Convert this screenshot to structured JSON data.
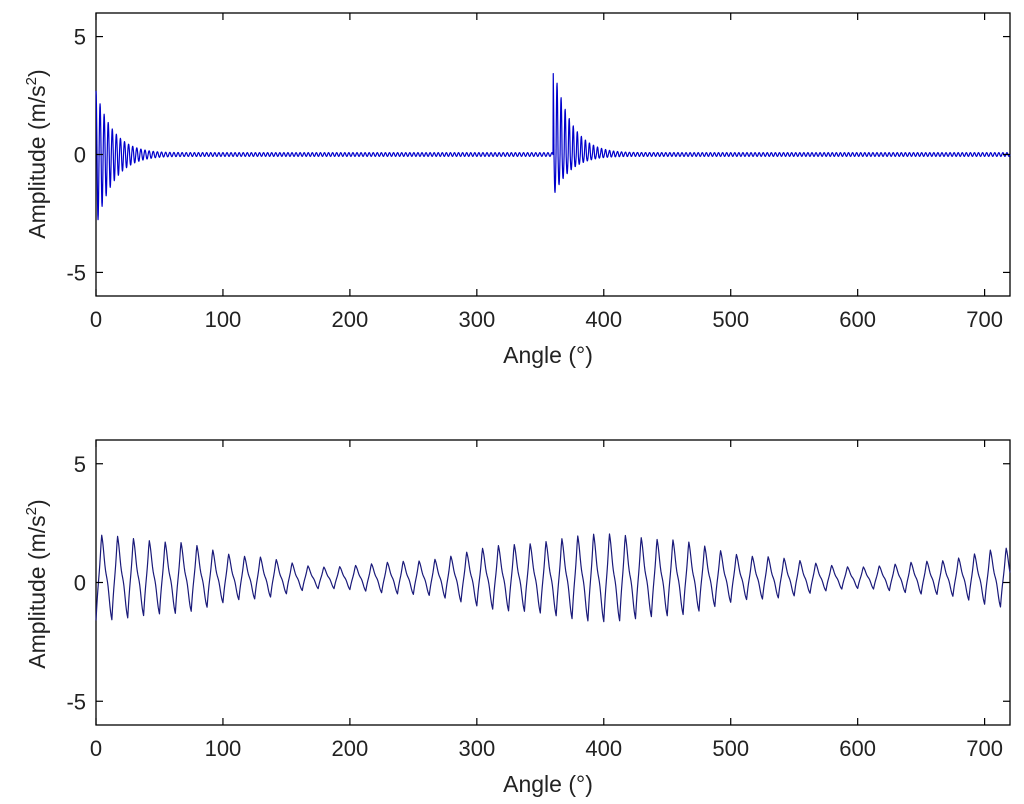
{
  "chart_data": [
    {
      "type": "line",
      "title": "",
      "xlabel": "Angle (°)",
      "ylabel_base": "Amplitude (m/s",
      "ylabel_sup": "2",
      "ylabel_end": ")",
      "xlim": [
        0,
        720
      ],
      "ylim": [
        -6,
        6
      ],
      "xticks": [
        0,
        100,
        200,
        300,
        400,
        500,
        600,
        700
      ],
      "xtick_labels": [
        "0",
        "100",
        "200",
        "300",
        "400",
        "500",
        "600",
        "700"
      ],
      "yticks": [
        5,
        0,
        -5
      ],
      "ytick_labels": [
        "5",
        "0",
        "-5"
      ],
      "grid": false,
      "color": "#0000cc",
      "signal": {
        "description_type": "decaying impacts",
        "impacts": [
          {
            "x": 0,
            "peak_pos": 2.7,
            "peak_neg": -3.1,
            "decay_deg": 14,
            "period_deg": 3.2
          },
          {
            "x": 360,
            "peak_pos": 3.8,
            "peak_neg": -1.8,
            "decay_deg": 14,
            "period_deg": 3.2
          }
        ],
        "baseline_ripple_amplitude": 0.08,
        "baseline_ripple_period_deg": 3.2
      }
    },
    {
      "type": "line",
      "title": "",
      "xlabel": "Angle (°)",
      "ylabel_base": "Amplitude (m/s",
      "ylabel_sup": "2",
      "ylabel_end": ")",
      "xlim": [
        0,
        720
      ],
      "ylim": [
        -6,
        6
      ],
      "xticks": [
        0,
        100,
        200,
        300,
        400,
        500,
        600,
        700
      ],
      "xtick_labels": [
        "0",
        "100",
        "200",
        "300",
        "400",
        "500",
        "600",
        "700"
      ],
      "yticks": [
        5,
        0,
        -5
      ],
      "ytick_labels": [
        "5",
        "0",
        "-5"
      ],
      "grid": false,
      "color": "#1a1a7a",
      "signal": {
        "description_type": "modulated oscillation",
        "period_deg": 12.5,
        "envelope_points": [
          {
            "x": 0,
            "amp": 1.8
          },
          {
            "x": 60,
            "amp": 1.5
          },
          {
            "x": 120,
            "amp": 0.9
          },
          {
            "x": 180,
            "amp": 0.45
          },
          {
            "x": 250,
            "amp": 0.7
          },
          {
            "x": 330,
            "amp": 1.4
          },
          {
            "x": 400,
            "amp": 1.85
          },
          {
            "x": 450,
            "amp": 1.6
          },
          {
            "x": 520,
            "amp": 0.9
          },
          {
            "x": 600,
            "amp": 0.45
          },
          {
            "x": 660,
            "amp": 0.7
          },
          {
            "x": 720,
            "amp": 1.25
          }
        ],
        "offset": 0.2
      }
    }
  ]
}
